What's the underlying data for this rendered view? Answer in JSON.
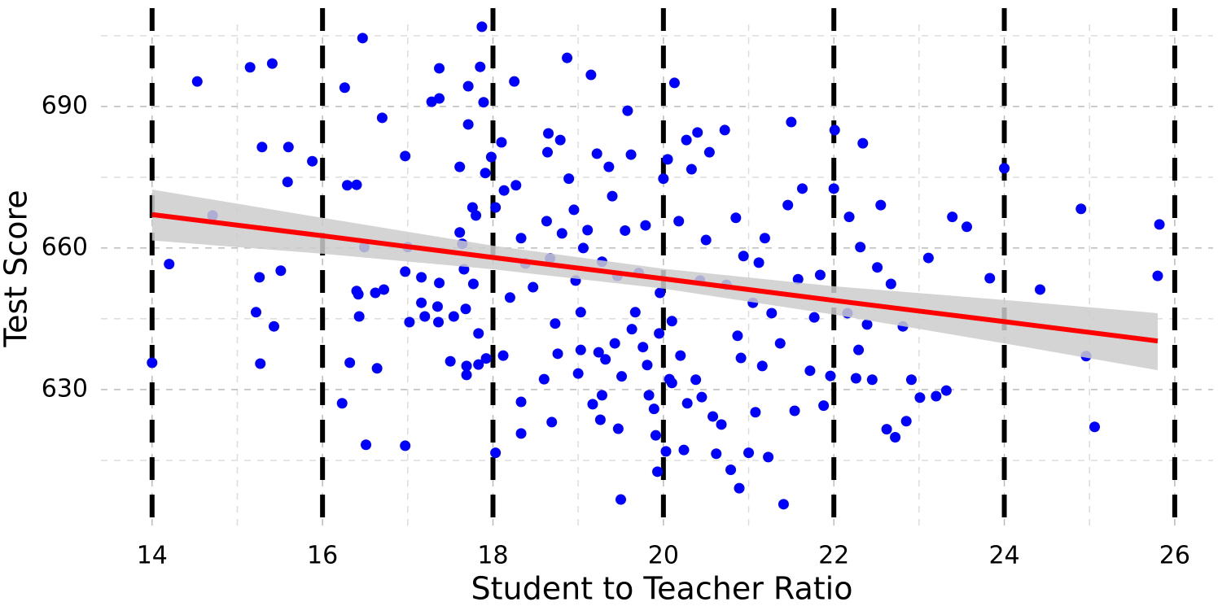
{
  "chart_data": {
    "type": "scatter",
    "x_label": "Student to Teacher Ratio",
    "y_label": "Test Score",
    "xlim": [
      13.4,
      26.45
    ],
    "ylim": [
      600.5,
      707.4
    ],
    "xticks": [
      14,
      16,
      18,
      20,
      22,
      24,
      26
    ],
    "yticks": [
      630,
      660,
      690
    ],
    "minor_xticks": [
      15,
      17,
      19,
      21,
      23,
      25
    ],
    "minor_yticks": [
      615,
      645,
      675,
      705
    ],
    "grid": true,
    "color": "#0000ff",
    "vlines": [
      14,
      16,
      18,
      20,
      22,
      24,
      26
    ],
    "vline_color": "#000000",
    "fit": {
      "color": "#ff0000",
      "band_color": "#cccccc",
      "x": [
        14,
        16,
        18,
        20,
        22,
        24,
        25.8
      ],
      "y": [
        667.1,
        662.6,
        658.0,
        653.5,
        648.9,
        644.4,
        640.3
      ],
      "lower": [
        661.6,
        658.8,
        655.5,
        651.4,
        645.9,
        639.8,
        634.1
      ],
      "upper": [
        672.4,
        666.4,
        660.5,
        655.6,
        651.9,
        649.0,
        646.2
      ]
    },
    "x": [
      14.0,
      14.2,
      14.53,
      14.71,
      15.15,
      15.41,
      15.29,
      15.26,
      15.22,
      15.27,
      15.43,
      15.51,
      15.59,
      15.6,
      15.88,
      16.26,
      16.47,
      16.29,
      16.4,
      16.49,
      16.4,
      16.43,
      16.42,
      16.23,
      16.32,
      16.51,
      16.64,
      16.62,
      16.72,
      16.7,
      16.97,
      17.0,
      16.97,
      17.02,
      16.97,
      17.16,
      17.16,
      17.2,
      17.28,
      17.37,
      17.37,
      17.37,
      17.35,
      17.36,
      17.5,
      17.54,
      17.61,
      17.61,
      17.64,
      17.66,
      17.68,
      17.69,
      17.69,
      17.71,
      17.71,
      17.76,
      17.77,
      17.8,
      17.83,
      17.83,
      17.85,
      17.87,
      17.89,
      17.91,
      17.92,
      17.98,
      18.03,
      18.03,
      18.1,
      18.12,
      18.13,
      18.2,
      18.25,
      18.27,
      18.33,
      18.33,
      18.33,
      18.38,
      18.47,
      18.6,
      18.64,
      18.63,
      18.65,
      18.67,
      18.69,
      18.73,
      18.76,
      18.79,
      18.81,
      18.87,
      18.89,
      18.95,
      18.97,
      19.0,
      19.03,
      19.03,
      19.06,
      19.11,
      19.15,
      19.17,
      19.22,
      19.24,
      19.26,
      19.28,
      19.28,
      19.32,
      19.36,
      19.4,
      19.43,
      19.46,
      19.47,
      19.5,
      19.51,
      19.55,
      19.58,
      19.62,
      19.63,
      19.67,
      19.71,
      19.76,
      19.79,
      19.81,
      19.83,
      19.89,
      19.91,
      19.93,
      19.95,
      19.96,
      20.0,
      20.03,
      20.05,
      20.07,
      20.1,
      20.1,
      20.13,
      20.18,
      20.2,
      20.24,
      20.27,
      20.28,
      20.33,
      20.38,
      20.4,
      20.43,
      20.45,
      20.5,
      20.54,
      20.58,
      20.62,
      20.68,
      20.72,
      20.74,
      20.79,
      20.85,
      20.87,
      20.89,
      20.91,
      20.94,
      21.0,
      21.05,
      21.08,
      21.12,
      21.16,
      21.19,
      21.23,
      21.27,
      21.37,
      21.41,
      21.46,
      21.5,
      21.54,
      21.58,
      21.63,
      21.72,
      21.77,
      21.84,
      21.88,
      21.96,
      22.0,
      22.01,
      22.16,
      22.18,
      22.26,
      22.29,
      22.31,
      22.34,
      22.39,
      22.45,
      22.51,
      22.55,
      22.62,
      22.67,
      22.72,
      22.81,
      22.85,
      22.91,
      23.01,
      23.11,
      23.2,
      23.32,
      23.39,
      23.56,
      23.83,
      24.0,
      24.42,
      24.9,
      24.96,
      25.06,
      25.82,
      25.8
    ],
    "y": [
      635.7,
      656.6,
      695.3,
      666.9,
      698.3,
      699.1,
      681.4,
      653.8,
      646.4,
      635.5,
      643.4,
      655.2,
      674.0,
      681.4,
      678.4,
      694.0,
      704.5,
      673.3,
      673.4,
      660.2,
      650.9,
      645.5,
      650.2,
      627.1,
      635.7,
      618.3,
      634.5,
      650.5,
      651.2,
      687.6,
      679.5,
      660.2,
      655.0,
      644.3,
      618.1,
      653.8,
      648.4,
      645.5,
      691.0,
      691.7,
      698.1,
      652.6,
      647.6,
      644.3,
      636.0,
      645.5,
      677.2,
      663.3,
      660.9,
      655.5,
      647.1,
      635.0,
      633.1,
      686.2,
      694.3,
      668.6,
      652.4,
      666.9,
      635.3,
      641.9,
      698.4,
      706.9,
      690.9,
      675.9,
      636.6,
      679.3,
      668.6,
      616.6,
      682.4,
      637.2,
      672.2,
      649.5,
      695.3,
      673.3,
      627.4,
      620.7,
      662.1,
      656.7,
      651.7,
      632.2,
      680.3,
      665.7,
      684.3,
      657.8,
      623.1,
      644.0,
      637.6,
      682.9,
      663.1,
      700.3,
      674.7,
      668.1,
      653.1,
      633.4,
      646.4,
      638.4,
      660.0,
      663.8,
      696.7,
      626.9,
      680.0,
      637.9,
      623.6,
      657.1,
      628.8,
      636.4,
      677.2,
      671.0,
      639.8,
      654.1,
      621.7,
      606.7,
      632.8,
      663.7,
      689.1,
      679.8,
      642.8,
      646.4,
      654.7,
      639.0,
      664.8,
      635.2,
      628.8,
      625.9,
      620.3,
      612.6,
      641.9,
      650.5,
      674.7,
      616.9,
      678.8,
      632.2,
      631.4,
      644.5,
      695.0,
      665.7,
      637.2,
      617.2,
      682.9,
      627.1,
      676.7,
      632.1,
      684.5,
      653.1,
      628.4,
      661.7,
      680.3,
      624.3,
      616.4,
      622.6,
      685.0,
      652.2,
      613.0,
      666.4,
      641.4,
      609.1,
      636.7,
      658.3,
      616.6,
      648.4,
      625.2,
      656.9,
      635.0,
      662.1,
      615.7,
      646.2,
      639.8,
      605.7,
      669.1,
      686.7,
      625.5,
      653.4,
      672.6,
      634.0,
      645.3,
      654.3,
      626.6,
      632.9,
      672.6,
      685.0,
      646.2,
      666.6,
      632.4,
      638.4,
      660.2,
      682.2,
      643.8,
      632.1,
      655.9,
      669.1,
      621.6,
      652.4,
      619.9,
      643.4,
      623.3,
      632.1,
      628.3,
      657.9,
      628.6,
      629.8,
      666.6,
      664.5,
      653.6,
      676.9,
      651.2,
      668.3,
      637.1,
      622.1,
      665.0,
      654.1
    ]
  }
}
